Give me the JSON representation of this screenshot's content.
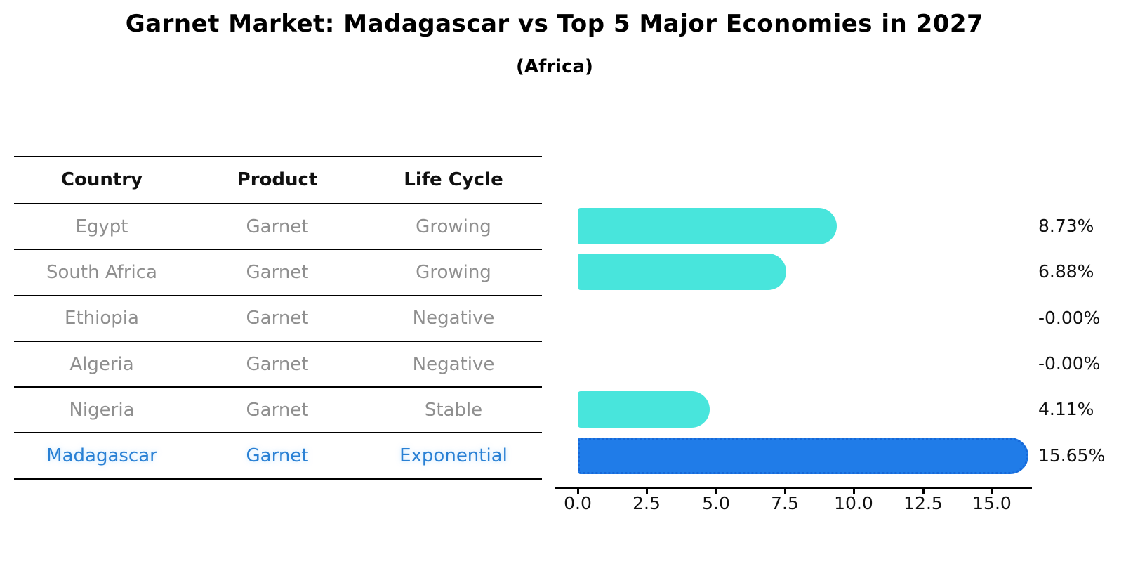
{
  "chart_data": {
    "type": "bar",
    "orientation": "horizontal",
    "title": "Garnet Market: Madagascar vs Top 5 Major Economies in 2027",
    "subtitle": "(Africa)",
    "categories": [
      "Egypt",
      "South Africa",
      "Ethiopia",
      "Algeria",
      "Nigeria",
      "Madagascar"
    ],
    "values": [
      8.73,
      6.88,
      -0.0,
      -0.0,
      4.11,
      15.65
    ],
    "value_labels": [
      "8.73%",
      "6.88%",
      "-0.00%",
      "-0.00%",
      "4.11%",
      "15.65%"
    ],
    "x_ticks": [
      "0.0",
      "2.5",
      "5.0",
      "7.5",
      "10.0",
      "12.5",
      "15.0"
    ],
    "x_tick_values": [
      0.0,
      2.5,
      5.0,
      7.5,
      10.0,
      12.5,
      15.0
    ],
    "xlim": [
      0,
      16.45
    ],
    "grid": false,
    "legend": false,
    "highlight_index": 5
  },
  "table": {
    "columns": [
      "Country",
      "Product",
      "Life Cycle"
    ],
    "rows": [
      {
        "country": "Egypt",
        "product": "Garnet",
        "life_cycle": "Growing",
        "highlight": false
      },
      {
        "country": "South Africa",
        "product": "Garnet",
        "life_cycle": "Growing",
        "highlight": false
      },
      {
        "country": "Ethiopia",
        "product": "Garnet",
        "life_cycle": "Negative",
        "highlight": false
      },
      {
        "country": "Algeria",
        "product": "Garnet",
        "life_cycle": "Negative",
        "highlight": false
      },
      {
        "country": "Nigeria",
        "product": "Garnet",
        "life_cycle": "Stable",
        "highlight": false
      },
      {
        "country": "Madagascar",
        "product": "Garnet",
        "life_cycle": "Exponential",
        "highlight": true
      }
    ]
  },
  "colors": {
    "bar_default": "#48e5dc",
    "bar_highlight": "#207ce8",
    "highlight_text": "#2980d4",
    "row_text": "#8f8f8f",
    "header_text": "#111111",
    "axis": "#000000"
  }
}
